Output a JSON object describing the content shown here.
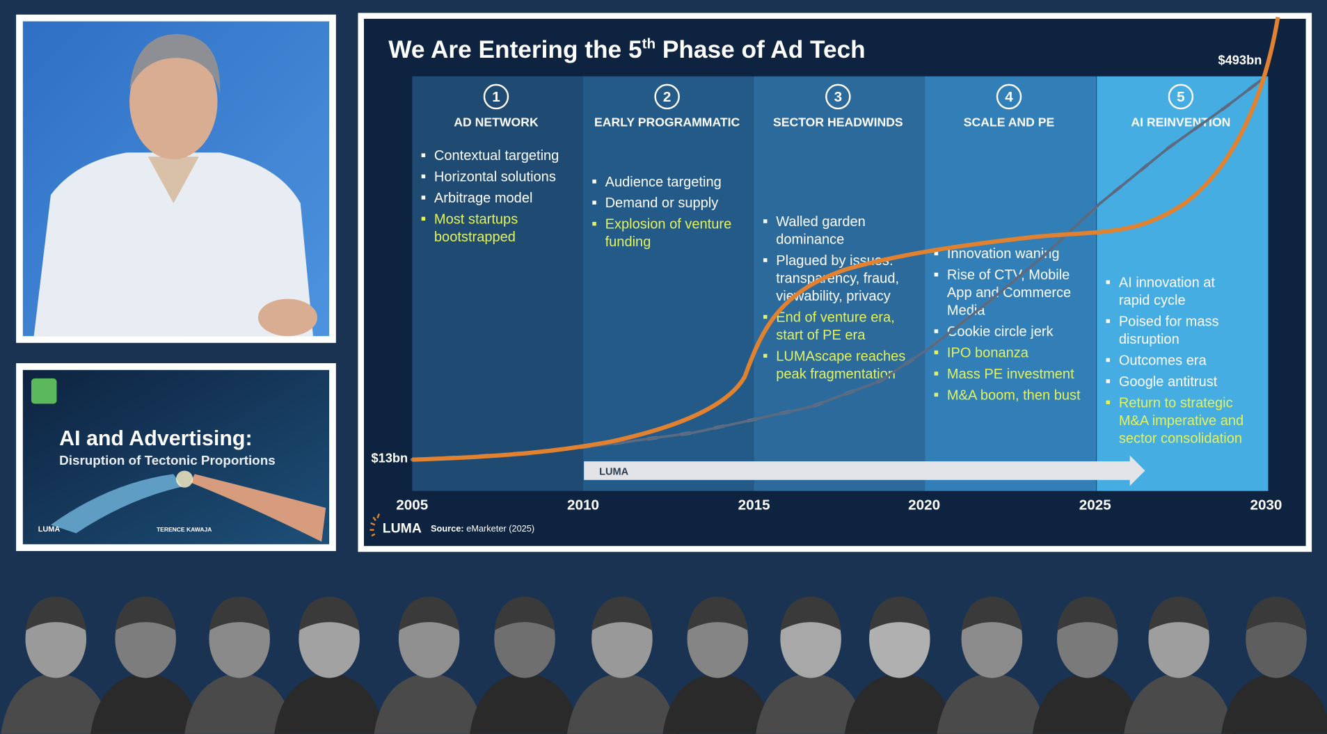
{
  "thumbnail": {
    "title": "AI and Advertising:",
    "subtitle": "Disruption of Tectonic Proportions",
    "brand": "LUMA",
    "author": "TERENCE KAWAJA"
  },
  "slide": {
    "title_start": "We Are Entering the 5",
    "title_sup": "th",
    "title_end": " Phase of Ad Tech",
    "start_label": "$13bn",
    "end_label": "$493bn",
    "years": [
      "2005",
      "2010",
      "2015",
      "2020",
      "2025",
      "2030"
    ],
    "arrow_brand": "LUMA",
    "footer_brand": "LUMA",
    "source_label": "Source:",
    "source_text": "eMarketer (2025)",
    "phases": [
      {
        "number": "1",
        "title": "AD NETWORK",
        "color": "#1f4a72",
        "bullets": [
          {
            "lines": [
              "Contextual targeting"
            ],
            "color": "#ffffff"
          },
          {
            "lines": [
              "Horizontal solutions"
            ],
            "color": "#ffffff"
          },
          {
            "lines": [
              "Arbitrage model"
            ],
            "color": "#ffffff"
          },
          {
            "lines": [
              "Most startups",
              "bootstrapped"
            ],
            "color": "#e4f25c"
          }
        ]
      },
      {
        "number": "2",
        "title": "EARLY PROGRAMMATIC",
        "color": "#245a87",
        "bullets": [
          {
            "lines": [
              "Audience targeting"
            ],
            "color": "#ffffff"
          },
          {
            "lines": [
              "Demand or supply"
            ],
            "color": "#ffffff"
          },
          {
            "lines": [
              "Explosion of venture",
              "funding"
            ],
            "color": "#e4f25c"
          }
        ]
      },
      {
        "number": "3",
        "title": "SECTOR HEADWINDS",
        "color": "#2b6a9b",
        "bullets": [
          {
            "lines": [
              "Walled garden",
              "dominance"
            ],
            "color": "#ffffff"
          },
          {
            "lines": [
              "Plagued by issues:",
              "transparency, fraud,",
              "viewability, privacy"
            ],
            "color": "#ffffff"
          },
          {
            "lines": [
              "End of venture era,",
              "start of PE era"
            ],
            "color": "#e4f25c"
          },
          {
            "lines": [
              "LUMAscape reaches",
              "peak fragmentation"
            ],
            "color": "#e4f25c"
          }
        ]
      },
      {
        "number": "4",
        "title": "SCALE AND PE",
        "color": "#317fb6",
        "bullets": [
          {
            "lines": [
              "Innovation waning"
            ],
            "color": "#ffffff"
          },
          {
            "lines": [
              "Rise of CTV, Mobile",
              "App and Commerce",
              "Media"
            ],
            "color": "#ffffff"
          },
          {
            "lines": [
              "Cookie circle jerk"
            ],
            "color": "#ffffff"
          },
          {
            "lines": [
              "IPO bonanza"
            ],
            "color": "#e4f25c"
          },
          {
            "lines": [
              "Mass PE investment"
            ],
            "color": "#e4f25c"
          },
          {
            "lines": [
              "M&A boom, then bust"
            ],
            "color": "#e4f25c"
          }
        ]
      },
      {
        "number": "5",
        "title": "AI REINVENTION",
        "color": "#45ade2",
        "bullets": [
          {
            "lines": [
              "AI innovation at",
              "rapid cycle"
            ],
            "color": "#ffffff"
          },
          {
            "lines": [
              "Poised for mass",
              "disruption"
            ],
            "color": "#ffffff"
          },
          {
            "lines": [
              "Outcomes era"
            ],
            "color": "#ffffff"
          },
          {
            "lines": [
              "Google antitrust"
            ],
            "color": "#ffffff"
          },
          {
            "lines": [
              "Return to strategic",
              "M&A imperative and",
              "sector consolidation"
            ],
            "color": "#e4f25c"
          }
        ]
      }
    ]
  }
}
